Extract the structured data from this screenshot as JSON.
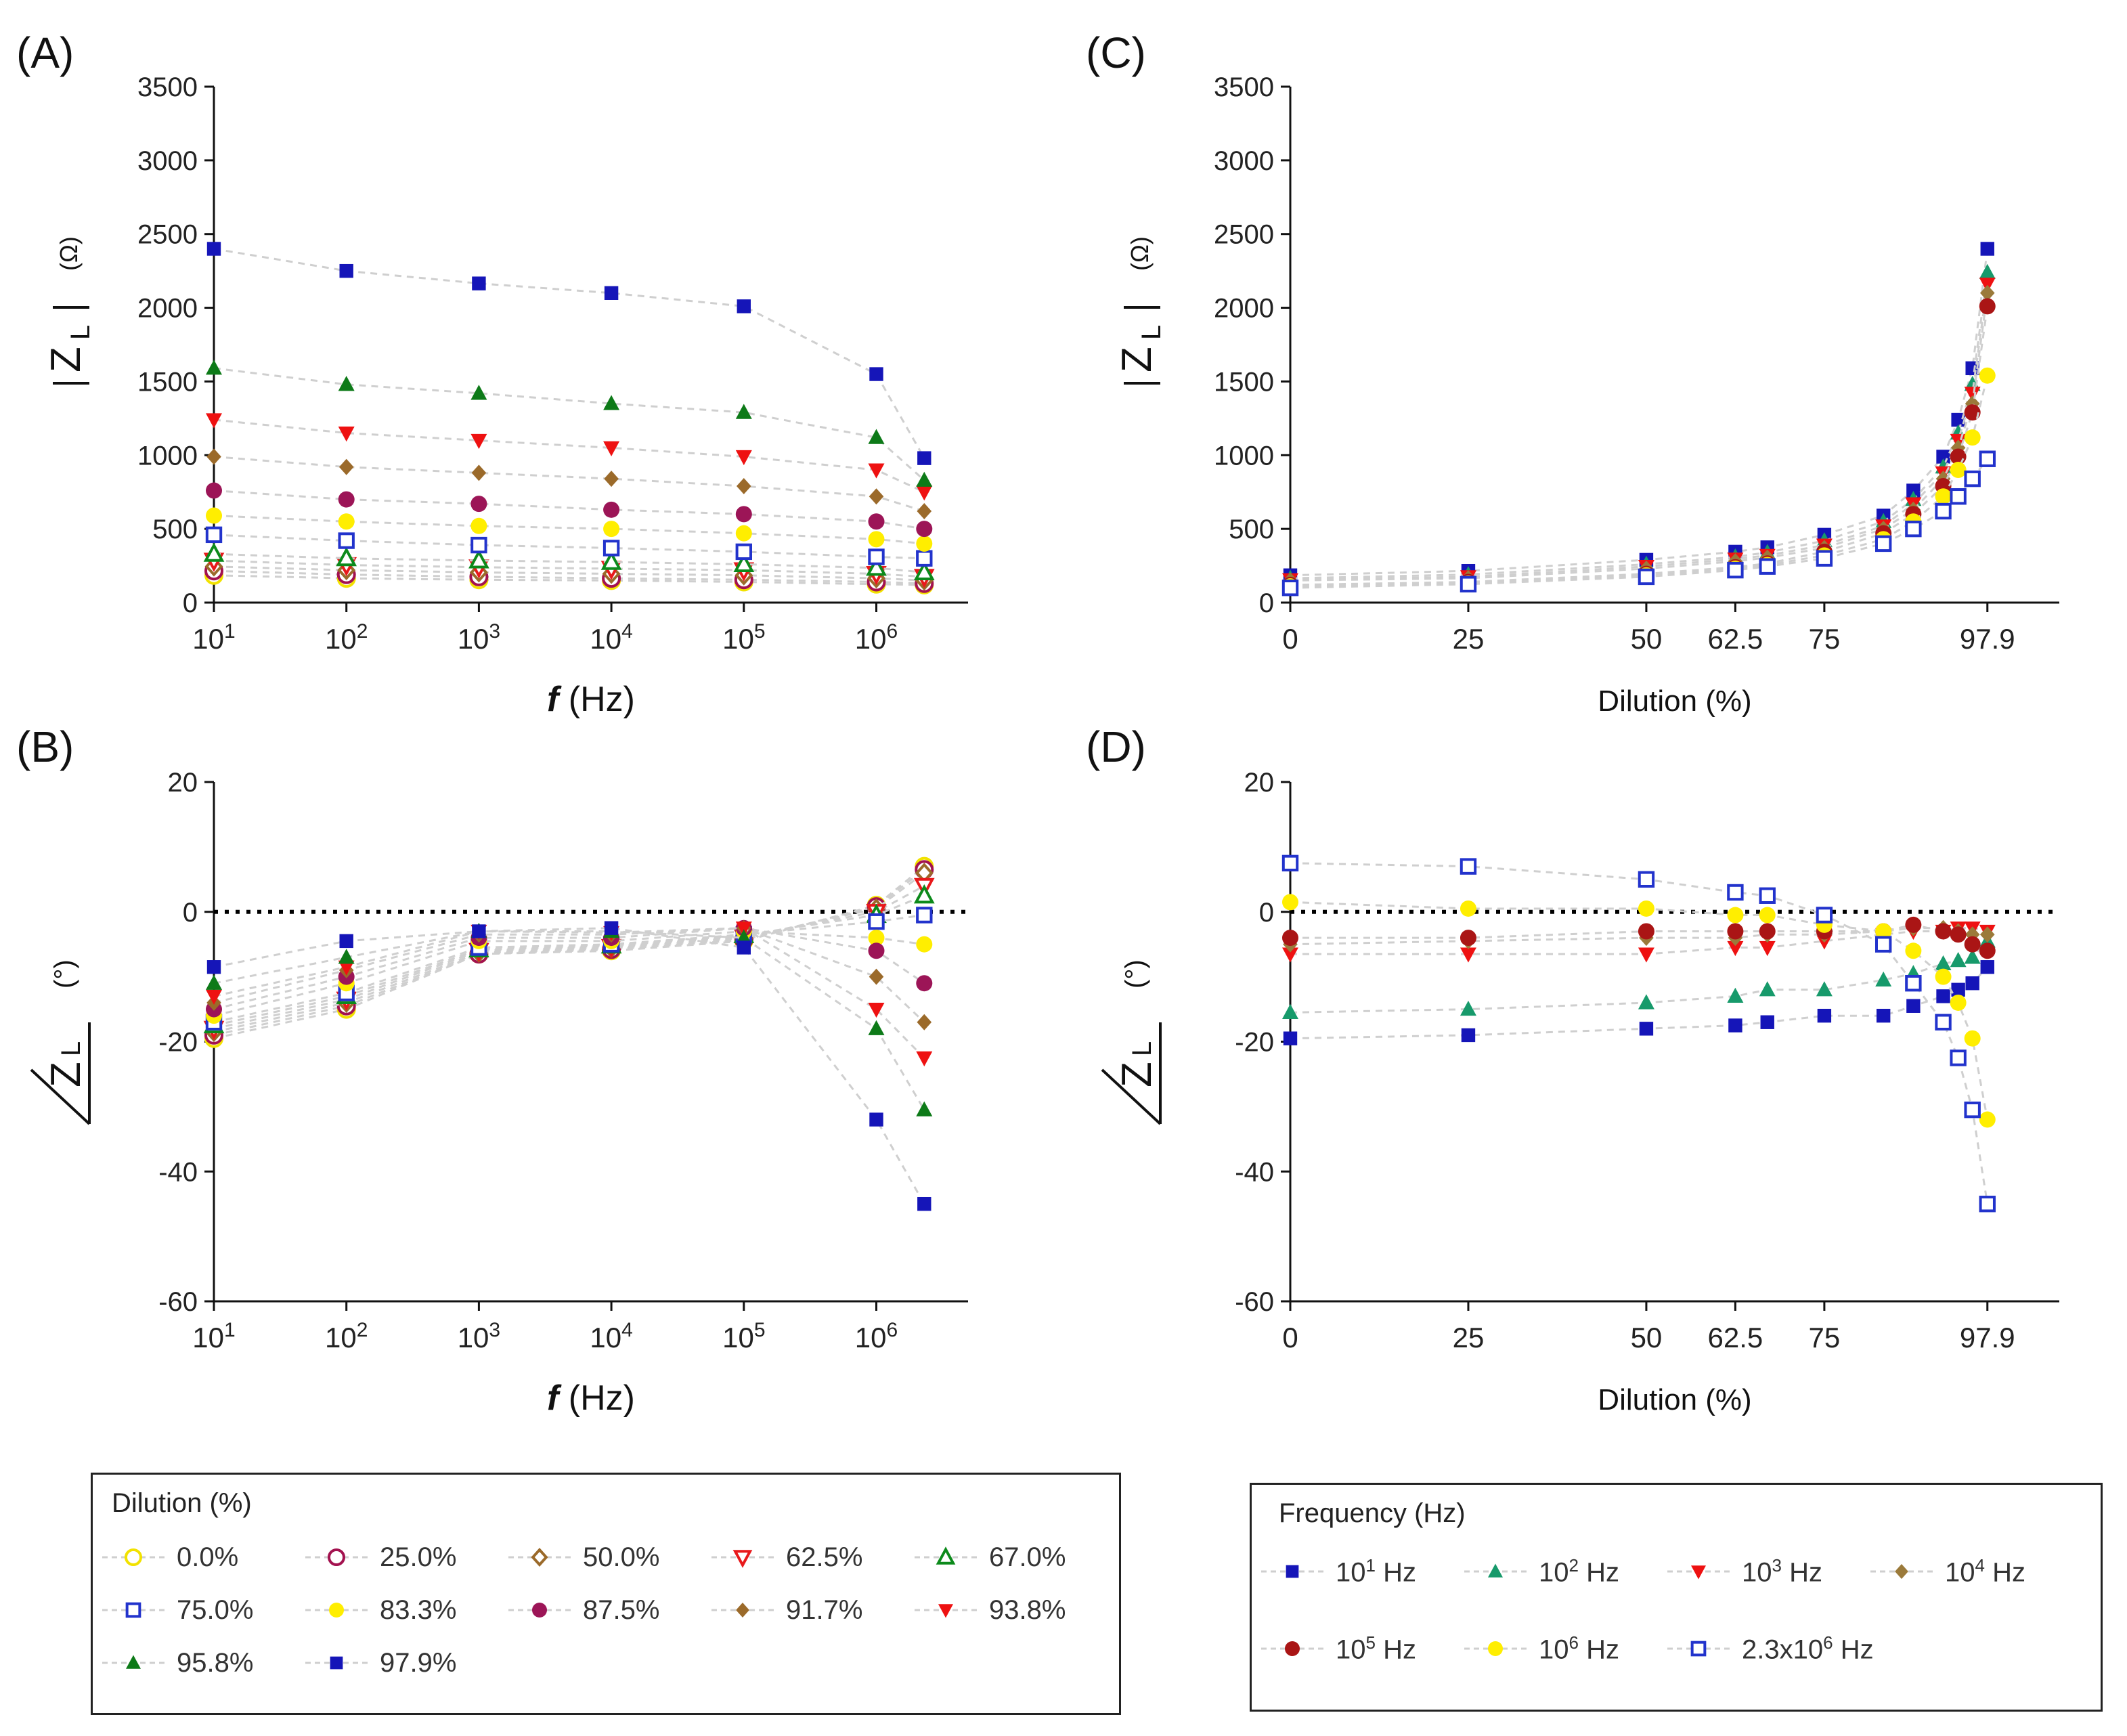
{
  "dilution_series": [
    {
      "name": "0.0%",
      "marker": "circle",
      "fill": false,
      "color": "#f2e200"
    },
    {
      "name": "25.0%",
      "marker": "circle",
      "fill": false,
      "color": "#a3124f"
    },
    {
      "name": "50.0%",
      "marker": "diamond",
      "fill": false,
      "color": "#9b6a2a"
    },
    {
      "name": "62.5%",
      "marker": "triangle-down",
      "fill": false,
      "color": "#e8191b"
    },
    {
      "name": "67.0%",
      "marker": "triangle-up",
      "fill": false,
      "color": "#0c8a1b"
    },
    {
      "name": "75.0%",
      "marker": "square",
      "fill": false,
      "color": "#2233cc"
    },
    {
      "name": "83.3%",
      "marker": "circle",
      "fill": true,
      "color": "#ffee00"
    },
    {
      "name": "87.5%",
      "marker": "circle",
      "fill": true,
      "color": "#9c1557"
    },
    {
      "name": "91.7%",
      "marker": "diamond",
      "fill": true,
      "color": "#9b6a2a"
    },
    {
      "name": "93.8%",
      "marker": "triangle-down",
      "fill": true,
      "color": "#ee1111"
    },
    {
      "name": "95.8%",
      "marker": "triangle-up",
      "fill": true,
      "color": "#0d7a18"
    },
    {
      "name": "97.9%",
      "marker": "square",
      "fill": true,
      "color": "#1515b8"
    }
  ],
  "frequency_series": [
    {
      "name": "10^1 Hz",
      "base": "10",
      "exp": "1",
      "tail": " Hz",
      "marker": "square",
      "fill": true,
      "color": "#1515b8"
    },
    {
      "name": "10^2 Hz",
      "base": "10",
      "exp": "2",
      "tail": " Hz",
      "marker": "triangle-up",
      "fill": true,
      "color": "#179a6b"
    },
    {
      "name": "10^3 Hz",
      "base": "10",
      "exp": "3",
      "tail": " Hz",
      "marker": "triangle-down",
      "fill": true,
      "color": "#ee1111"
    },
    {
      "name": "10^4 Hz",
      "base": "10",
      "exp": "4",
      "tail": " Hz",
      "marker": "diamond",
      "fill": true,
      "color": "#9b7a3a"
    },
    {
      "name": "10^5 Hz",
      "base": "10",
      "exp": "5",
      "tail": " Hz",
      "marker": "circle",
      "fill": true,
      "color": "#aa1515"
    },
    {
      "name": "10^6 Hz",
      "base": "10",
      "exp": "6",
      "tail": " Hz",
      "marker": "circle",
      "fill": true,
      "color": "#ffee00"
    },
    {
      "name": "2.3x10^6 Hz",
      "base": "2.3x10",
      "exp": "6",
      "tail": " Hz",
      "marker": "square",
      "fill": false,
      "color": "#2233cc"
    }
  ],
  "legends": {
    "dilution": {
      "title": "Dilution (%)"
    },
    "frequency": {
      "title": "Frequency (Hz)"
    }
  },
  "chart_data": [
    {
      "panel": "(A)",
      "type": "scatter",
      "xscale": "log",
      "xlabel": "f (Hz)",
      "ylabel": "|Z_L| (Ω)",
      "xticks": [
        "10^1",
        "10^2",
        "10^3",
        "10^4",
        "10^5",
        "10^6"
      ],
      "yticks": [
        "0",
        "500",
        "1000",
        "1500",
        "2000",
        "2500",
        "3000",
        "3500"
      ],
      "ylim": [
        0,
        3500
      ],
      "x": [
        10,
        100,
        1000,
        10000,
        100000,
        1000000,
        2300000
      ],
      "series": [
        {
          "name": "0.0%",
          "values": [
            185,
            165,
            155,
            150,
            140,
            125,
            120
          ]
        },
        {
          "name": "25.0%",
          "values": [
            215,
            190,
            175,
            165,
            155,
            140,
            130
          ]
        },
        {
          "name": "50.0%",
          "values": [
            245,
            220,
            205,
            195,
            185,
            165,
            150
          ]
        },
        {
          "name": "62.5%",
          "values": [
            285,
            255,
            240,
            230,
            220,
            195,
            175
          ]
        },
        {
          "name": "67.0%",
          "values": [
            330,
            300,
            285,
            275,
            260,
            235,
            205
          ]
        },
        {
          "name": "75.0%",
          "values": [
            460,
            420,
            390,
            370,
            345,
            310,
            300
          ]
        },
        {
          "name": "83.3%",
          "values": [
            590,
            550,
            520,
            500,
            470,
            430,
            400
          ]
        },
        {
          "name": "87.5%",
          "values": [
            760,
            700,
            670,
            630,
            600,
            550,
            500
          ]
        },
        {
          "name": "91.7%",
          "values": [
            990,
            920,
            880,
            840,
            790,
            720,
            620
          ]
        },
        {
          "name": "93.8%",
          "values": [
            1240,
            1150,
            1100,
            1050,
            990,
            900,
            750
          ]
        },
        {
          "name": "95.8%",
          "values": [
            1590,
            1480,
            1420,
            1350,
            1290,
            1120,
            830
          ]
        },
        {
          "name": "97.9%",
          "values": [
            2400,
            2250,
            2165,
            2100,
            2010,
            1550,
            980
          ]
        }
      ]
    },
    {
      "panel": "(B)",
      "type": "scatter",
      "xscale": "log",
      "xlabel": "f (Hz)",
      "ylabel": "∠Z_L (°)",
      "xticks": [
        "10^1",
        "10^2",
        "10^3",
        "10^4",
        "10^5",
        "10^6"
      ],
      "yticks": [
        "20",
        "0",
        "-20",
        "-40",
        "-60"
      ],
      "ylim": [
        -60,
        20
      ],
      "reference_line": 0,
      "x": [
        10,
        100,
        1000,
        10000,
        100000,
        1000000,
        2300000
      ],
      "series": [
        {
          "name": "0.0%",
          "values": [
            -19.5,
            -15,
            -6.5,
            -6,
            -4.5,
            1,
            7
          ]
        },
        {
          "name": "25.0%",
          "values": [
            -19,
            -14.5,
            -6.5,
            -5.8,
            -4.3,
            0.8,
            6.5
          ]
        },
        {
          "name": "50.0%",
          "values": [
            -18.5,
            -14,
            -6.3,
            -5.6,
            -4,
            0.5,
            6
          ]
        },
        {
          "name": "62.5%",
          "values": [
            -18,
            -13.5,
            -6,
            -5.4,
            -3.8,
            0,
            4
          ]
        },
        {
          "name": "67.0%",
          "values": [
            -17.5,
            -13,
            -5.8,
            -5.2,
            -3.6,
            -0.5,
            2.5
          ]
        },
        {
          "name": "75.0%",
          "values": [
            -17,
            -12.5,
            -5.5,
            -5,
            -3.5,
            -1.5,
            -0.5
          ]
        },
        {
          "name": "83.3%",
          "values": [
            -16,
            -11,
            -4.5,
            -4.5,
            -3,
            -4,
            -5
          ]
        },
        {
          "name": "87.5%",
          "values": [
            -15,
            -10,
            -4,
            -4,
            -2.5,
            -6,
            -11
          ]
        },
        {
          "name": "91.7%",
          "values": [
            -14,
            -9,
            -3.5,
            -3.5,
            -2.5,
            -10,
            -17
          ]
        },
        {
          "name": "93.8%",
          "values": [
            -13,
            -8.5,
            -3,
            -3.2,
            -2.5,
            -15,
            -22.5
          ]
        },
        {
          "name": "95.8%",
          "values": [
            -11,
            -7,
            -3,
            -3,
            -4,
            -18,
            -30.5
          ]
        },
        {
          "name": "97.9%",
          "values": [
            -8.5,
            -4.5,
            -3,
            -2.5,
            -5.5,
            -32,
            -45
          ]
        }
      ]
    },
    {
      "panel": "(C)",
      "type": "scatter",
      "xlabel": "Dilution (%)",
      "ylabel": "|Z_L| (Ω)",
      "xticks": [
        "0",
        "25",
        "50",
        "62.5",
        "75",
        "97.9"
      ],
      "yticks": [
        "0",
        "500",
        "1000",
        "1500",
        "2000",
        "2500",
        "3000",
        "3500"
      ],
      "xlim": [
        0,
        108
      ],
      "ylim": [
        0,
        3500
      ],
      "x": [
        0,
        25,
        50,
        62.5,
        67,
        75,
        83.3,
        87.5,
        91.7,
        93.8,
        95.8,
        97.9
      ],
      "series": [
        {
          "name": "10^1 Hz",
          "values": [
            185,
            215,
            290,
            345,
            375,
            460,
            590,
            760,
            990,
            1240,
            1590,
            2400
          ]
        },
        {
          "name": "10^2 Hz",
          "values": [
            165,
            190,
            260,
            310,
            340,
            420,
            550,
            700,
            920,
            1150,
            1480,
            2240
          ]
        },
        {
          "name": "10^3 Hz",
          "values": [
            155,
            175,
            245,
            295,
            320,
            390,
            520,
            670,
            880,
            1100,
            1420,
            2160
          ]
        },
        {
          "name": "10^4 Hz",
          "values": [
            150,
            165,
            230,
            280,
            305,
            370,
            500,
            630,
            840,
            1050,
            1350,
            2100
          ]
        },
        {
          "name": "10^5 Hz",
          "values": [
            120,
            140,
            195,
            240,
            265,
            345,
            470,
            600,
            790,
            990,
            1290,
            2010
          ]
        },
        {
          "name": "10^6 Hz",
          "values": [
            110,
            130,
            185,
            230,
            255,
            320,
            430,
            550,
            720,
            900,
            1120,
            1540
          ]
        },
        {
          "name": "2.3x10^6 Hz",
          "values": [
            100,
            125,
            175,
            220,
            245,
            300,
            400,
            500,
            620,
            720,
            840,
            975
          ]
        }
      ]
    },
    {
      "panel": "(D)",
      "type": "scatter",
      "xlabel": "Dilution (%)",
      "ylabel": "∠Z_L (°)",
      "xticks": [
        "0",
        "25",
        "50",
        "62.5",
        "75",
        "97.9"
      ],
      "yticks": [
        "20",
        "0",
        "-20",
        "-40",
        "-60"
      ],
      "xlim": [
        0,
        108
      ],
      "ylim": [
        -60,
        20
      ],
      "reference_line": 0,
      "x": [
        0,
        25,
        50,
        62.5,
        67,
        75,
        83.3,
        87.5,
        91.7,
        93.8,
        95.8,
        97.9
      ],
      "series": [
        {
          "name": "10^1 Hz",
          "values": [
            -19.5,
            -19,
            -18,
            -17.5,
            -17,
            -16,
            -16,
            -14.5,
            -13,
            -12,
            -11,
            -8.5
          ]
        },
        {
          "name": "10^2 Hz",
          "values": [
            -15.5,
            -15,
            -14,
            -13,
            -12,
            -12,
            -10.5,
            -9.5,
            -8,
            -7.5,
            -7,
            -4.5
          ]
        },
        {
          "name": "10^3 Hz",
          "values": [
            -6.5,
            -6.5,
            -6.5,
            -5.5,
            -5.5,
            -4.5,
            -3.5,
            -3,
            -3,
            -2.5,
            -2.5,
            -3
          ]
        },
        {
          "name": "10^4 Hz",
          "values": [
            -5,
            -4.5,
            -4,
            -4,
            -3.5,
            -3.5,
            -3,
            -2.5,
            -2.5,
            -3,
            -3.5,
            -3.5
          ]
        },
        {
          "name": "10^5 Hz",
          "values": [
            -4,
            -4,
            -3,
            -3,
            -3,
            -3,
            -3,
            -2,
            -3,
            -3.5,
            -5,
            -6
          ]
        },
        {
          "name": "10^6 Hz",
          "values": [
            1.5,
            0.5,
            0.5,
            -0.5,
            -0.5,
            -2,
            -3,
            -6,
            -10,
            -14,
            -19.5,
            -32
          ]
        },
        {
          "name": "2.3x10^6 Hz",
          "values": [
            7.5,
            7,
            5,
            3,
            2.5,
            -0.5,
            -5,
            -11,
            -17,
            -22.5,
            -30.5,
            -45
          ]
        }
      ]
    }
  ]
}
